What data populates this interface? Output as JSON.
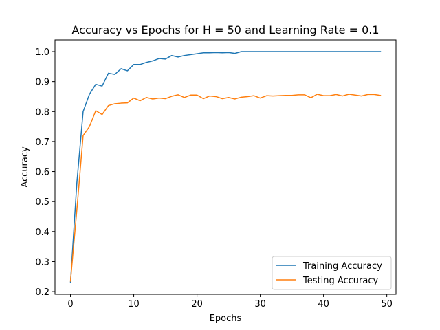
{
  "chart_data": {
    "type": "line",
    "title": "Accuracy vs Epochs for H = 50 and Learning Rate = 0.1",
    "xlabel": "Epochs",
    "ylabel": "Accuracy",
    "xlim": [
      -2.45,
      51.45
    ],
    "ylim": [
      0.191,
      1.039
    ],
    "xticks": [
      0,
      10,
      20,
      30,
      40,
      50
    ],
    "yticks": [
      0.2,
      0.3,
      0.4,
      0.5,
      0.6,
      0.7,
      0.8,
      0.9,
      1.0
    ],
    "ytick_labels": [
      "0.2",
      "0.3",
      "0.4",
      "0.5",
      "0.6",
      "0.7",
      "0.8",
      "0.9",
      "1.0"
    ],
    "legend_position": "lower-right",
    "x": [
      0,
      1,
      2,
      3,
      4,
      5,
      6,
      7,
      8,
      9,
      10,
      11,
      12,
      13,
      14,
      15,
      16,
      17,
      18,
      19,
      20,
      21,
      22,
      23,
      24,
      25,
      26,
      27,
      28,
      29,
      30,
      31,
      32,
      33,
      34,
      35,
      36,
      37,
      38,
      39,
      40,
      41,
      42,
      43,
      44,
      45,
      46,
      47,
      48,
      49
    ],
    "series": [
      {
        "name": "Training Accuracy",
        "color": "#1f77b4",
        "values": [
          0.23,
          0.56,
          0.8,
          0.858,
          0.891,
          0.885,
          0.928,
          0.924,
          0.943,
          0.936,
          0.957,
          0.957,
          0.964,
          0.969,
          0.977,
          0.975,
          0.987,
          0.982,
          0.987,
          0.99,
          0.993,
          0.996,
          0.996,
          0.997,
          0.996,
          0.997,
          0.994,
          1.0,
          1.0,
          1.0,
          1.0,
          1.0,
          1.0,
          1.0,
          1.0,
          1.0,
          1.0,
          1.0,
          1.0,
          1.0,
          1.0,
          1.0,
          1.0,
          1.0,
          1.0,
          1.0,
          1.0,
          1.0,
          1.0,
          1.0
        ]
      },
      {
        "name": "Testing Accuracy",
        "color": "#ff7f0e",
        "values": [
          0.235,
          0.47,
          0.72,
          0.75,
          0.803,
          0.79,
          0.82,
          0.826,
          0.828,
          0.829,
          0.845,
          0.836,
          0.847,
          0.842,
          0.845,
          0.843,
          0.851,
          0.856,
          0.847,
          0.855,
          0.855,
          0.843,
          0.852,
          0.85,
          0.843,
          0.847,
          0.842,
          0.848,
          0.85,
          0.853,
          0.845,
          0.853,
          0.852,
          0.853,
          0.854,
          0.854,
          0.856,
          0.856,
          0.846,
          0.858,
          0.853,
          0.853,
          0.857,
          0.852,
          0.858,
          0.855,
          0.852,
          0.857,
          0.857,
          0.854
        ]
      }
    ]
  }
}
